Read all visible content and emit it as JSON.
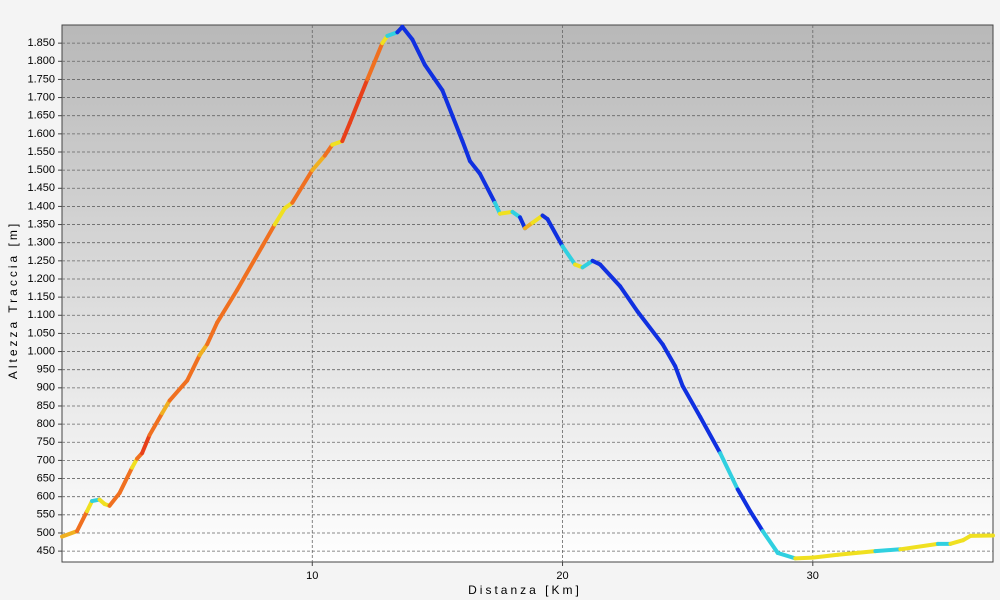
{
  "chart_data": {
    "type": "line",
    "x_label": "Distanza [Km]",
    "y_label": "Altezza Traccia [m]",
    "x": [
      0,
      0.6,
      1.0,
      1.2,
      1.5,
      1.7,
      1.9,
      2.3,
      2.8,
      3.0,
      3.2,
      3.5,
      4.0,
      4.3,
      5.0,
      5.5,
      5.8,
      6.2,
      7.0,
      8.0,
      8.5,
      8.9,
      9.2,
      10.0,
      10.5,
      10.8,
      11.2,
      11.5,
      12.2,
      12.8,
      13.0,
      13.4,
      13.6,
      14.0,
      14.5,
      15.2,
      15.6,
      16.0,
      16.3,
      16.7,
      17.3,
      17.5,
      18.0,
      18.3,
      18.5,
      18.8,
      19.2,
      19.4,
      20.0,
      20.5,
      20.8,
      21.2,
      21.5,
      22.3,
      23.0,
      24.0,
      24.5,
      24.8,
      25.5,
      26.3,
      27.0,
      27.5,
      28.0,
      28.6,
      29.3,
      30.0,
      31.0,
      32.5,
      33.5,
      35.0,
      35.5,
      36.0,
      36.3,
      37.2
    ],
    "series": [
      {
        "values": [
          490,
          505,
          560,
          588,
          592,
          580,
          575,
          610,
          680,
          705,
          720,
          770,
          830,
          865,
          920,
          990,
          1020,
          1080,
          1170,
          1290,
          1350,
          1395,
          1410,
          1500,
          1540,
          1570,
          1580,
          1630,
          1750,
          1850,
          1870,
          1880,
          1895,
          1860,
          1790,
          1720,
          1650,
          1580,
          1525,
          1490,
          1410,
          1380,
          1385,
          1370,
          1340,
          1355,
          1375,
          1365,
          1290,
          1240,
          1232,
          1250,
          1240,
          1180,
          1110,
          1020,
          960,
          905,
          820,
          720,
          620,
          560,
          505,
          445,
          430,
          432,
          440,
          450,
          455,
          470,
          470,
          480,
          492,
          493
        ],
        "colors": [
          "#f0e020",
          "#f0b020",
          "#f07020",
          "#f0e020",
          "#30d0e0",
          "#f0e020",
          "#f0e020",
          "#f07020",
          "#f07020",
          "#f0e020",
          "#f07020",
          "#e8401a",
          "#f07020",
          "#f0b020",
          "#f07020",
          "#f07020",
          "#f0b020",
          "#f07020",
          "#f07020",
          "#f07020",
          "#f07020",
          "#f0e020",
          "#f0e020",
          "#f07020",
          "#f0b020",
          "#f07020",
          "#f0e020",
          "#e8401a",
          "#e8401a",
          "#f07020",
          "#f0e020",
          "#30d0e0",
          "#1030e0",
          "#1030e0",
          "#1030e0",
          "#1030e0",
          "#1030e0",
          "#1030e0",
          "#1030e0",
          "#1030e0",
          "#1030e0",
          "#30d0e0",
          "#f0e020",
          "#30d0e0",
          "#1030e0",
          "#f0b020",
          "#f0e020",
          "#1030e0",
          "#1030e0",
          "#30d0e0",
          "#f0e020",
          "#30d0e0",
          "#1030e0",
          "#1030e0",
          "#1030e0",
          "#1030e0",
          "#1030e0",
          "#1030e0",
          "#1030e0",
          "#1030e0",
          "#30d0e0",
          "#1030e0",
          "#1030e0",
          "#30d0e0",
          "#30d0e0",
          "#f0e020",
          "#f0e020",
          "#f0e020",
          "#30d0e0",
          "#f0e020",
          "#30d0e0",
          "#f0e020",
          "#f0e020",
          "#f0e020"
        ]
      }
    ],
    "xlim": [
      0,
      37.2
    ],
    "ylim": [
      420,
      1900
    ],
    "xticks": [
      10,
      20,
      30
    ],
    "yticks": [
      450,
      500,
      550,
      600,
      650,
      700,
      750,
      800,
      850,
      900,
      950,
      {
        "value": 1000,
        "label": "1.000"
      },
      {
        "value": 1050,
        "label": "1.050"
      },
      {
        "value": 1100,
        "label": "1.100"
      },
      {
        "value": 1150,
        "label": "1.150"
      },
      {
        "value": 1200,
        "label": "1.200"
      },
      {
        "value": 1250,
        "label": "1.250"
      },
      {
        "value": 1300,
        "label": "1.300"
      },
      {
        "value": 1350,
        "label": "1.350"
      },
      {
        "value": 1400,
        "label": "1.400"
      },
      {
        "value": 1450,
        "label": "1.450"
      },
      {
        "value": 1500,
        "label": "1.500"
      },
      {
        "value": 1550,
        "label": "1.550"
      },
      {
        "value": 1600,
        "label": "1.600"
      },
      {
        "value": 1650,
        "label": "1.650"
      },
      {
        "value": 1700,
        "label": "1.700"
      },
      {
        "value": 1750,
        "label": "1.750"
      },
      {
        "value": 1800,
        "label": "1.800"
      },
      {
        "value": 1850,
        "label": "1.850"
      }
    ],
    "grid": true
  }
}
